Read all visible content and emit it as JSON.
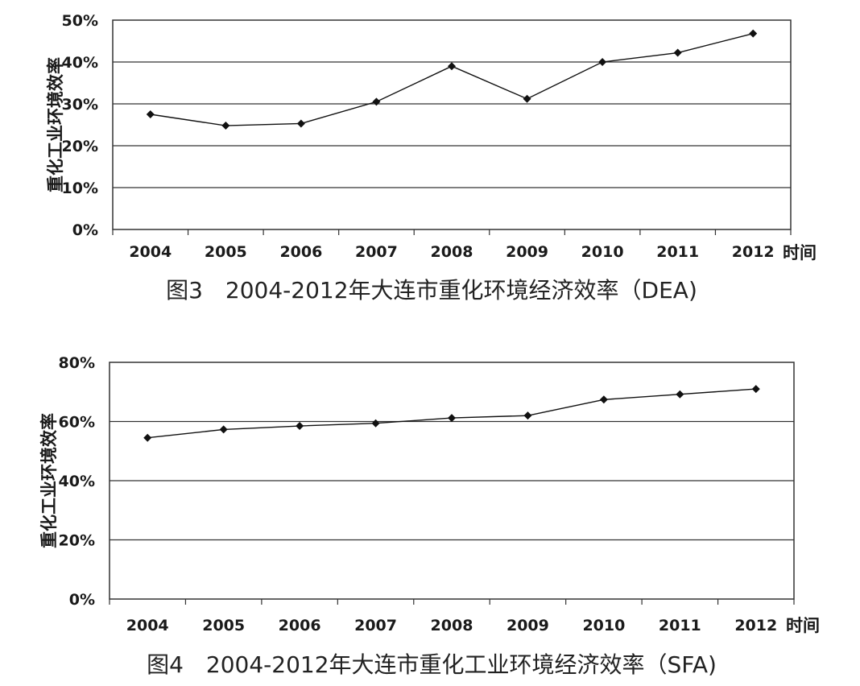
{
  "chart_data": [
    {
      "type": "line",
      "caption": "图3　2004-2012年大连市重化环境经济效率（DEA)",
      "ylabel": "重化工业环境效率",
      "xunit": "时间",
      "categories": [
        "2004",
        "2005",
        "2006",
        "2007",
        "2008",
        "2009",
        "2010",
        "2011",
        "2012"
      ],
      "values": [
        27.5,
        24.8,
        25.3,
        30.5,
        39.0,
        31.2,
        40.0,
        42.2,
        46.8
      ],
      "yticks": [
        "0%",
        "10%",
        "20%",
        "30%",
        "40%",
        "50%"
      ],
      "ylim": [
        0,
        50
      ],
      "grid": true,
      "marker": "diamond"
    },
    {
      "type": "line",
      "caption": "图4　2004-2012年大连市重化工业环境经济效率（SFA)",
      "ylabel": "重化工业环境效率",
      "xunit": "时间",
      "categories": [
        "2004",
        "2005",
        "2006",
        "2007",
        "2008",
        "2009",
        "2010",
        "2011",
        "2012"
      ],
      "values": [
        54.5,
        57.3,
        58.5,
        59.4,
        61.2,
        62.0,
        67.4,
        69.2,
        71.0
      ],
      "yticks": [
        "0%",
        "20%",
        "40%",
        "60%",
        "80%"
      ],
      "ylim": [
        0,
        80
      ],
      "grid": true,
      "marker": "diamond"
    }
  ]
}
